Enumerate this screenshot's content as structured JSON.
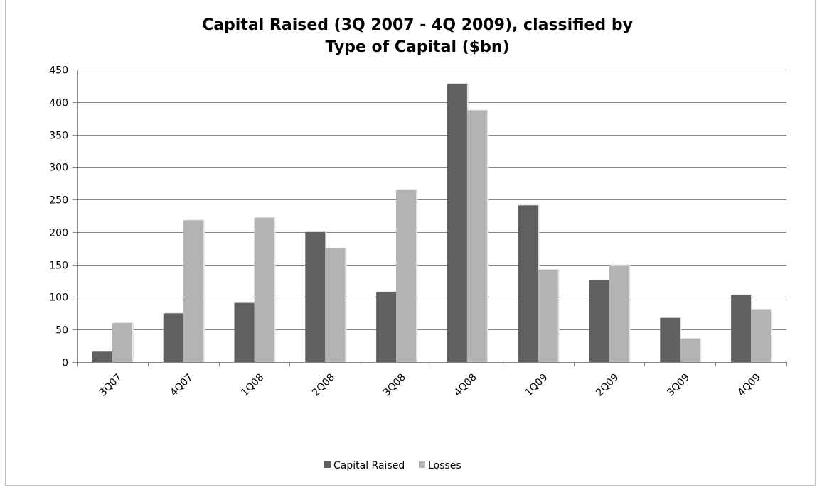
{
  "chart_data": {
    "type": "bar",
    "title_lines": [
      "Capital Raised (3Q 2007 - 4Q 2009), classified by",
      "Type of Capital ($bn)"
    ],
    "xlabel": "",
    "ylabel": "",
    "categories": [
      "3Q07",
      "4Q07",
      "1Q08",
      "2Q08",
      "3Q08",
      "4Q08",
      "1Q09",
      "2Q09",
      "3Q09",
      "4Q09"
    ],
    "series": [
      {
        "name": "Capital Raised",
        "color": "#606060",
        "values": [
          16,
          75,
          91,
          200,
          108,
          428,
          241,
          126,
          68,
          103
        ]
      },
      {
        "name": "Losses",
        "color": "#b3b3b3",
        "values": [
          60,
          218,
          222,
          175,
          265,
          387,
          142,
          149,
          36,
          81
        ]
      }
    ],
    "ylim": [
      0,
      450
    ],
    "yticks": [
      0,
      50,
      100,
      150,
      200,
      250,
      300,
      350,
      400,
      450
    ],
    "grid": true,
    "legend_position": "bottom"
  }
}
